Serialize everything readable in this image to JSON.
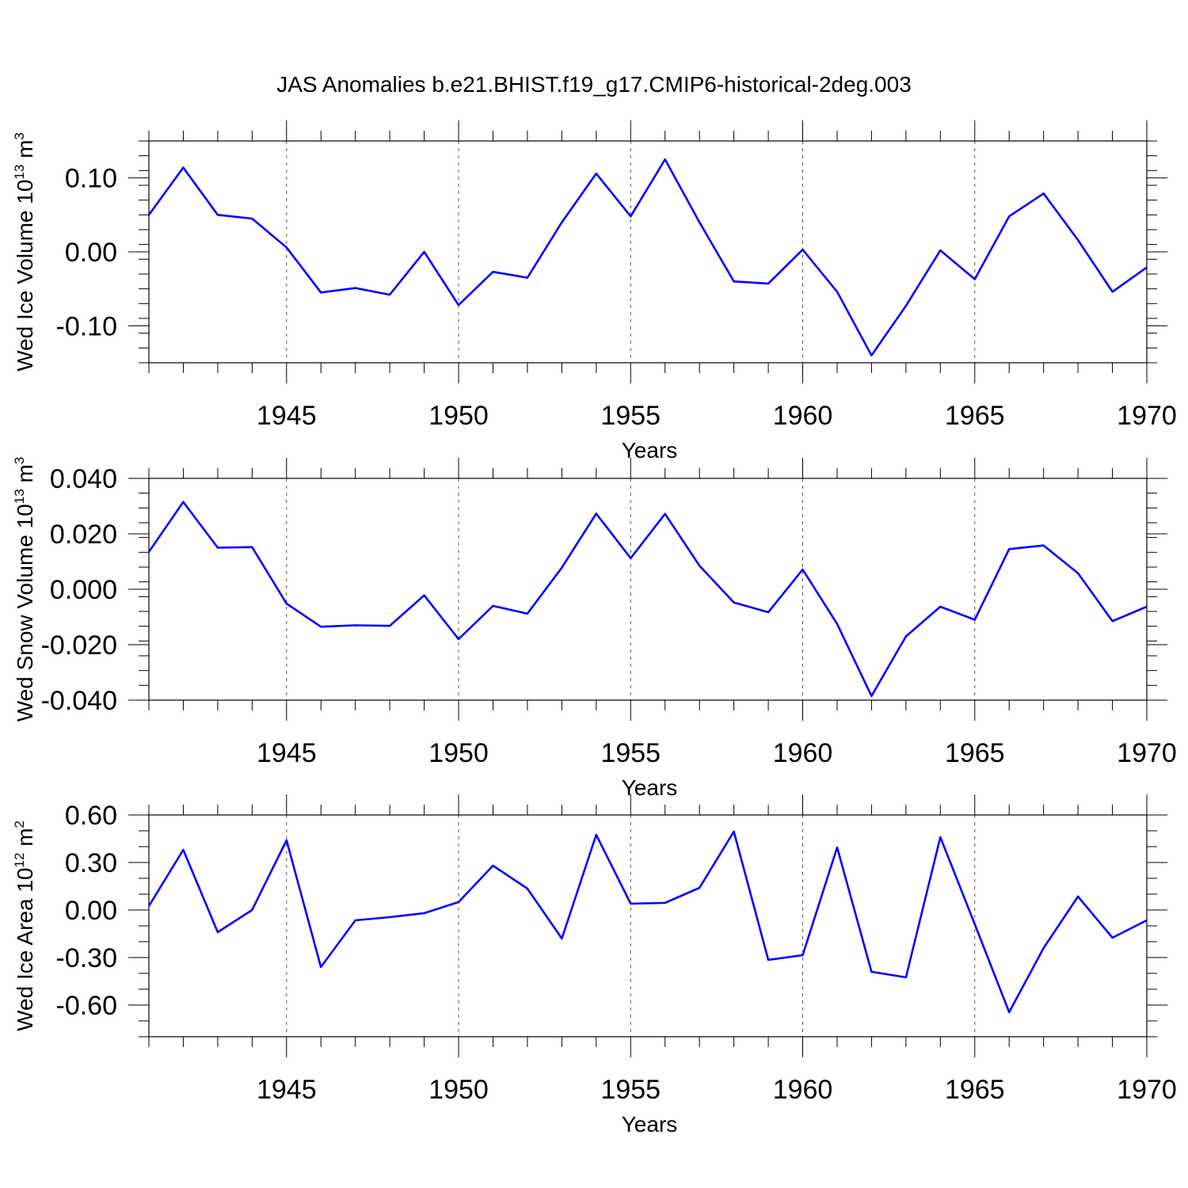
{
  "figure": {
    "title": "JAS Anomalies b.e21.BHIST.f19_g17.CMIP6-historical-2deg.003"
  },
  "colors": {
    "line": "#0000ff",
    "axis": "#000000",
    "gridline": "#555555",
    "background": "#ffffff"
  },
  "chart_data": [
    {
      "type": "line",
      "xlabel": "Years",
      "ylabel": {
        "prefix": "Wed Ice Volume 10",
        "exponent": "13",
        "unit": " m",
        "unit_exponent": "3"
      },
      "xlim": [
        1941,
        1970
      ],
      "ylim": [
        -0.15,
        0.15
      ],
      "xticks": [
        1945,
        1950,
        1955,
        1960,
        1965,
        1970
      ],
      "yticks": [
        -0.1,
        0.0,
        0.1
      ],
      "ytick_labels": [
        "-0.10",
        "0.00",
        "0.10"
      ],
      "grid": "vertical dashed at major x ticks",
      "x": [
        1941,
        1942,
        1943,
        1944,
        1945,
        1946,
        1947,
        1948,
        1949,
        1950,
        1951,
        1952,
        1953,
        1954,
        1955,
        1956,
        1957,
        1958,
        1959,
        1960,
        1961,
        1962,
        1963,
        1964,
        1965,
        1966,
        1967,
        1968,
        1969,
        1970
      ],
      "values": [
        0.05,
        0.114,
        0.05,
        0.045,
        0.006,
        -0.055,
        -0.049,
        -0.058,
        0.0,
        -0.072,
        -0.027,
        -0.035,
        0.04,
        0.106,
        0.048,
        0.125,
        0.04,
        -0.04,
        -0.043,
        0.003,
        -0.054,
        -0.14,
        -0.073,
        0.002,
        -0.037,
        0.048,
        0.079,
        0.016,
        -0.054,
        -0.021
      ]
    },
    {
      "type": "line",
      "xlabel": "Years",
      "ylabel": {
        "prefix": "Wed Snow Volume 10",
        "exponent": "13",
        "unit": " m",
        "unit_exponent": "3"
      },
      "xlim": [
        1941,
        1970
      ],
      "ylim": [
        -0.04,
        0.04
      ],
      "xticks": [
        1945,
        1950,
        1955,
        1960,
        1965,
        1970
      ],
      "yticks": [
        -0.04,
        -0.02,
        0.0,
        0.02,
        0.04
      ],
      "ytick_labels": [
        "-0.040",
        "-0.020",
        "0.000",
        "0.020",
        "0.040"
      ],
      "grid": "vertical dashed at major x ticks",
      "x": [
        1941,
        1942,
        1943,
        1944,
        1945,
        1946,
        1947,
        1948,
        1949,
        1950,
        1951,
        1952,
        1953,
        1954,
        1955,
        1956,
        1957,
        1958,
        1959,
        1960,
        1961,
        1962,
        1963,
        1964,
        1965,
        1966,
        1967,
        1968,
        1969,
        1970
      ],
      "values": [
        0.0135,
        0.0315,
        0.015,
        0.0152,
        -0.0052,
        -0.0135,
        -0.013,
        -0.0132,
        -0.0022,
        -0.018,
        -0.006,
        -0.0088,
        0.0078,
        0.0273,
        0.0112,
        0.0272,
        0.0085,
        -0.0048,
        -0.0083,
        0.0071,
        -0.0125,
        -0.0385,
        -0.017,
        -0.0063,
        -0.011,
        0.0145,
        0.0158,
        0.0058,
        -0.0115,
        -0.0063
      ]
    },
    {
      "type": "line",
      "xlabel": "Years",
      "ylabel": {
        "prefix": "Wed Ice Area 10",
        "exponent": "12",
        "unit": " m",
        "unit_exponent": "2"
      },
      "xlim": [
        1941,
        1970
      ],
      "ylim": [
        -0.8,
        0.6
      ],
      "xticks": [
        1945,
        1950,
        1955,
        1960,
        1965,
        1970
      ],
      "yticks": [
        -0.6,
        -0.3,
        0.0,
        0.3,
        0.6
      ],
      "ytick_labels": [
        "-0.60",
        "-0.30",
        "0.00",
        "0.30",
        "0.60"
      ],
      "grid": "vertical dashed at major x ticks",
      "x": [
        1941,
        1942,
        1943,
        1944,
        1945,
        1946,
        1947,
        1948,
        1949,
        1950,
        1951,
        1952,
        1953,
        1954,
        1955,
        1956,
        1957,
        1958,
        1959,
        1960,
        1961,
        1962,
        1963,
        1964,
        1965,
        1966,
        1967,
        1968,
        1969,
        1970
      ],
      "values": [
        0.025,
        0.38,
        -0.14,
        0.0,
        0.44,
        -0.36,
        -0.065,
        -0.045,
        -0.02,
        0.05,
        0.28,
        0.135,
        -0.18,
        0.475,
        0.04,
        0.045,
        0.14,
        0.495,
        -0.315,
        -0.285,
        0.395,
        -0.39,
        -0.425,
        0.46,
        -0.09,
        -0.645,
        -0.24,
        0.085,
        -0.175,
        -0.065
      ]
    }
  ]
}
